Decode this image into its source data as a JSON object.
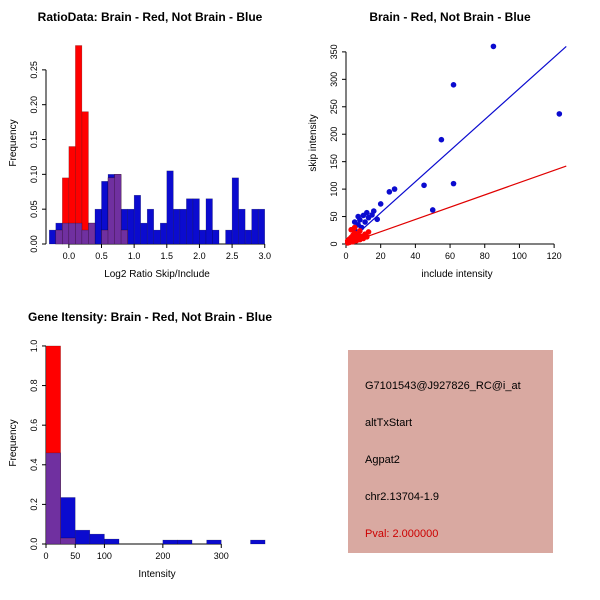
{
  "colors": {
    "red": "#FF0000",
    "blue": "#0B0BCF",
    "overlap": "#7030A0",
    "axis": "#000000",
    "red_line": "#E00000"
  },
  "chart_data": [
    {
      "id": "ratio-hist",
      "type": "bar",
      "title": "RatioData: Brain - Red, Not Brain - Blue",
      "xlabel": "Log2 Ratio Skip/Include",
      "ylabel": "Frequency",
      "xlim": [
        -0.35,
        3.05
      ],
      "ylim": [
        0,
        0.29
      ],
      "xticks": [
        0.0,
        0.5,
        1.0,
        1.5,
        2.0,
        2.5,
        3.0
      ],
      "xtick_labels": [
        "0.0",
        "0.5",
        "1.0",
        "1.5",
        "2.0",
        "2.5",
        "3.0"
      ],
      "yticks": [
        0,
        0.05,
        0.1,
        0.15,
        0.2,
        0.25
      ],
      "ytick_labels": [
        "0.00",
        "0.05",
        "0.10",
        "0.15",
        "0.20",
        "0.25"
      ],
      "bin_width": 0.1,
      "series": [
        {
          "name": "not_brain",
          "color_key": "blue",
          "bins": [
            [
              -0.3,
              0.02
            ],
            [
              -0.2,
              0.03
            ],
            [
              -0.1,
              0.03
            ],
            [
              0,
              0.03
            ],
            [
              0.1,
              0.03
            ],
            [
              0.2,
              0.02
            ],
            [
              0.3,
              0.03
            ],
            [
              0.4,
              0.05
            ],
            [
              0.5,
              0.09
            ],
            [
              0.6,
              0.1
            ],
            [
              0.7,
              0.1
            ],
            [
              0.8,
              0.05
            ],
            [
              0.9,
              0.05
            ],
            [
              1.0,
              0.07
            ],
            [
              1.1,
              0.03
            ],
            [
              1.2,
              0.05
            ],
            [
              1.3,
              0.02
            ],
            [
              1.4,
              0.03
            ],
            [
              1.5,
              0.105
            ],
            [
              1.6,
              0.05
            ],
            [
              1.7,
              0.05
            ],
            [
              1.8,
              0.065
            ],
            [
              1.9,
              0.065
            ],
            [
              2.0,
              0.02
            ],
            [
              2.1,
              0.065
            ],
            [
              2.2,
              0.02
            ],
            [
              2.4,
              0.02
            ],
            [
              2.5,
              0.095
            ],
            [
              2.6,
              0.05
            ],
            [
              2.7,
              0.02
            ],
            [
              2.8,
              0.05
            ],
            [
              2.9,
              0.05
            ]
          ]
        },
        {
          "name": "brain",
          "color_key": "red",
          "bins": [
            [
              -0.2,
              0.02
            ],
            [
              -0.1,
              0.095
            ],
            [
              0,
              0.14
            ],
            [
              0.1,
              0.285
            ],
            [
              0.2,
              0.19
            ],
            [
              0.3,
              0.03
            ],
            [
              0.5,
              0.02
            ],
            [
              0.6,
              0.095
            ],
            [
              0.7,
              0.1
            ],
            [
              0.8,
              0.02
            ]
          ]
        }
      ]
    },
    {
      "id": "intensity-scatter",
      "type": "scatter",
      "title": "Brain - Red, Not Brain - Blue",
      "xlabel": "include intensity",
      "ylabel": "skip intensity",
      "xlim": [
        0,
        128
      ],
      "ylim": [
        0,
        368
      ],
      "xticks": [
        0,
        20,
        40,
        60,
        80,
        100,
        120
      ],
      "xtick_labels": [
        "0",
        "20",
        "40",
        "60",
        "80",
        "100",
        "120"
      ],
      "yticks": [
        0,
        50,
        100,
        150,
        200,
        250,
        300,
        350
      ],
      "ytick_labels": [
        "0",
        "50",
        "100",
        "150",
        "200",
        "250",
        "300",
        "350"
      ],
      "lines": [
        {
          "color_key": "blue",
          "x1": 0,
          "y1": 0,
          "x2": 127,
          "y2": 360
        },
        {
          "color_key": "red_line",
          "x1": 0,
          "y1": 0,
          "x2": 127,
          "y2": 142
        }
      ],
      "series": [
        {
          "name": "not_brain",
          "color_key": "blue",
          "points": [
            [
              3,
              5
            ],
            [
              4,
              12
            ],
            [
              5,
              25
            ],
            [
              5,
              40
            ],
            [
              6,
              18
            ],
            [
              7,
              35
            ],
            [
              7,
              50
            ],
            [
              8,
              44
            ],
            [
              9,
              30
            ],
            [
              10,
              52
            ],
            [
              11,
              40
            ],
            [
              12,
              57
            ],
            [
              13,
              48
            ],
            [
              15,
              53
            ],
            [
              16,
              60
            ],
            [
              18,
              45
            ],
            [
              20,
              73
            ],
            [
              25,
              95
            ],
            [
              28,
              100
            ],
            [
              45,
              107
            ],
            [
              50,
              62
            ],
            [
              62,
              110
            ],
            [
              55,
              190
            ],
            [
              62,
              290
            ],
            [
              85,
              360
            ],
            [
              123,
              237
            ]
          ]
        },
        {
          "name": "brain",
          "color_key": "red",
          "points": [
            [
              1,
              2
            ],
            [
              1,
              6
            ],
            [
              2,
              3
            ],
            [
              2,
              9
            ],
            [
              3,
              5
            ],
            [
              3,
              12
            ],
            [
              4,
              4
            ],
            [
              4,
              16
            ],
            [
              5,
              8
            ],
            [
              5,
              20
            ],
            [
              6,
              6
            ],
            [
              6,
              13
            ],
            [
              7,
              10
            ],
            [
              7,
              18
            ],
            [
              8,
              8
            ],
            [
              8,
              24
            ],
            [
              9,
              14
            ],
            [
              10,
              10
            ],
            [
              11,
              18
            ],
            [
              12,
              13
            ],
            [
              13,
              22
            ],
            [
              3,
              26
            ],
            [
              5,
              30
            ]
          ]
        }
      ]
    },
    {
      "id": "gene-hist",
      "type": "bar",
      "title": "Gene Itensity: Brain - Red, Not Brain - Blue",
      "xlabel": "Intensity",
      "ylabel": "Frequency",
      "xlim": [
        0,
        380
      ],
      "ylim": [
        0,
        1.02
      ],
      "xticks": [
        0,
        50,
        100,
        200,
        300
      ],
      "xtick_labels": [
        "0",
        "50",
        "100",
        "200",
        "300"
      ],
      "yticks": [
        0,
        0.2,
        0.4,
        0.6,
        0.8,
        1.0
      ],
      "ytick_labels": [
        "0.0",
        "0.2",
        "0.4",
        "0.6",
        "0.8",
        "1.0"
      ],
      "bin_width": 25,
      "series": [
        {
          "name": "not_brain",
          "color_key": "blue",
          "bins": [
            [
              0,
              0.46
            ],
            [
              25,
              0.235
            ],
            [
              50,
              0.07
            ],
            [
              75,
              0.05
            ],
            [
              100,
              0.025
            ],
            [
              200,
              0.02
            ],
            [
              225,
              0.02
            ],
            [
              275,
              0.02
            ],
            [
              350,
              0.02
            ]
          ]
        },
        {
          "name": "brain",
          "color_key": "red",
          "bins": [
            [
              0,
              1.0
            ],
            [
              25,
              0.03
            ]
          ]
        }
      ]
    }
  ],
  "info_panel": {
    "bg_color": "#D9A9A1",
    "lines": [
      {
        "text": "G7101543@J927826_RC@i_at",
        "color": "#000000"
      },
      {
        "text": "altTxStart",
        "color": "#000000"
      },
      {
        "text": "Agpat2",
        "color": "#000000"
      },
      {
        "text": "chr2.13704-1.9",
        "color": "#000000"
      },
      {
        "text": "Pval: 2.000000",
        "color": "#CC0000"
      }
    ]
  }
}
